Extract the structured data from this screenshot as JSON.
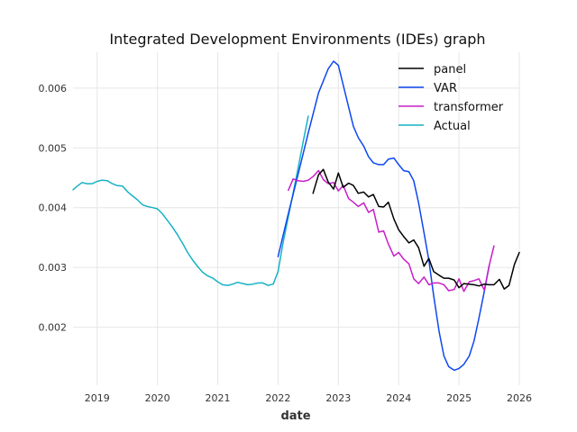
{
  "chart_data": {
    "type": "line",
    "title": "Integrated Development Environments (IDEs) graph",
    "xlabel": "date",
    "ylabel": "",
    "xlim": [
      2018.6,
      2026.0
    ],
    "ylim": [
      0.00103,
      0.0066
    ],
    "x_ticks": [
      2019,
      2020,
      2021,
      2022,
      2023,
      2024,
      2025,
      2026
    ],
    "x_tick_labels": [
      "2019",
      "2020",
      "2021",
      "2022",
      "2023",
      "2024",
      "2025",
      "2026"
    ],
    "y_ticks": [
      0.002,
      0.003,
      0.004,
      0.005,
      0.006
    ],
    "y_tick_labels": [
      "0.002",
      "0.003",
      "0.004",
      "0.005",
      "0.006"
    ],
    "grid": true,
    "legend_position": "top-right",
    "series": [
      {
        "name": "panel",
        "color": "#000000",
        "x": [
          2022.58,
          2022.67,
          2022.75,
          2022.83,
          2022.92,
          2023.0,
          2023.08,
          2023.17,
          2023.25,
          2023.33,
          2023.42,
          2023.5,
          2023.58,
          2023.67,
          2023.75,
          2023.83,
          2023.92,
          2024.0,
          2024.08,
          2024.17,
          2024.25,
          2024.33,
          2024.42,
          2024.5,
          2024.58,
          2024.67,
          2024.75,
          2024.83,
          2024.92,
          2025.0,
          2025.08,
          2025.17,
          2025.25,
          2025.33,
          2025.42,
          2025.5,
          2025.58,
          2025.67,
          2025.75,
          2025.83,
          2025.92,
          2026.0
        ],
        "values": [
          0.00424,
          0.00455,
          0.00464,
          0.00443,
          0.00431,
          0.00458,
          0.00434,
          0.00441,
          0.00437,
          0.00424,
          0.00426,
          0.00418,
          0.00422,
          0.00402,
          0.00401,
          0.00409,
          0.00381,
          0.00363,
          0.00352,
          0.00341,
          0.00346,
          0.00333,
          0.00302,
          0.00315,
          0.00293,
          0.00287,
          0.00282,
          0.00282,
          0.00279,
          0.00266,
          0.00273,
          0.00272,
          0.00271,
          0.00269,
          0.00272,
          0.00271,
          0.00271,
          0.0028,
          0.00264,
          0.0027,
          0.00305,
          0.00325
        ]
      },
      {
        "name": "VAR",
        "color": "#0d47f0",
        "x": [
          2022.0,
          2022.17,
          2022.33,
          2022.5,
          2022.67,
          2022.83,
          2022.92,
          2023.0,
          2023.08,
          2023.17,
          2023.25,
          2023.33,
          2023.42,
          2023.5,
          2023.58,
          2023.67,
          2023.75,
          2023.83,
          2023.92,
          2024.0,
          2024.08,
          2024.17,
          2024.25,
          2024.33,
          2024.42,
          2024.5,
          2024.58,
          2024.67,
          2024.75,
          2024.83,
          2024.92,
          2025.0,
          2025.08,
          2025.17,
          2025.25,
          2025.33,
          2025.42,
          2025.5
        ],
        "values": [
          0.00318,
          0.0039,
          0.00455,
          0.00525,
          0.00592,
          0.00632,
          0.00645,
          0.00638,
          0.00605,
          0.00568,
          0.00536,
          0.00517,
          0.00503,
          0.00485,
          0.00475,
          0.00472,
          0.00472,
          0.00481,
          0.00483,
          0.00472,
          0.00462,
          0.0046,
          0.00445,
          0.00408,
          0.00358,
          0.00312,
          0.00253,
          0.00193,
          0.00152,
          0.00134,
          0.00128,
          0.00131,
          0.00138,
          0.00152,
          0.00177,
          0.00215,
          0.0026,
          0.00303
        ]
      },
      {
        "name": "transformer",
        "color": "#c81ec8",
        "x": [
          2022.17,
          2022.25,
          2022.33,
          2022.42,
          2022.5,
          2022.58,
          2022.67,
          2022.75,
          2022.83,
          2022.92,
          2023.0,
          2023.08,
          2023.17,
          2023.25,
          2023.33,
          2023.42,
          2023.5,
          2023.58,
          2023.67,
          2023.75,
          2023.83,
          2023.92,
          2024.0,
          2024.08,
          2024.17,
          2024.25,
          2024.33,
          2024.42,
          2024.5,
          2024.58,
          2024.67,
          2024.75,
          2024.83,
          2024.92,
          2025.0,
          2025.08,
          2025.17,
          2025.25,
          2025.33,
          2025.42,
          2025.5,
          2025.58
        ],
        "values": [
          0.00429,
          0.00448,
          0.00445,
          0.00444,
          0.00446,
          0.00452,
          0.00462,
          0.00447,
          0.0044,
          0.00442,
          0.00428,
          0.00437,
          0.00415,
          0.00409,
          0.00402,
          0.00408,
          0.00392,
          0.00397,
          0.00359,
          0.00361,
          0.00339,
          0.00319,
          0.00325,
          0.00314,
          0.00306,
          0.00281,
          0.00273,
          0.00284,
          0.00271,
          0.00274,
          0.00274,
          0.00271,
          0.00261,
          0.00263,
          0.00281,
          0.0026,
          0.00276,
          0.00278,
          0.00281,
          0.00262,
          0.00303,
          0.00336
        ]
      },
      {
        "name": "Actual",
        "color": "#17b2c4",
        "x": [
          2018.6,
          2018.67,
          2018.75,
          2018.83,
          2018.92,
          2019.0,
          2019.08,
          2019.17,
          2019.25,
          2019.33,
          2019.42,
          2019.5,
          2019.58,
          2019.67,
          2019.75,
          2019.83,
          2019.92,
          2020.0,
          2020.08,
          2020.17,
          2020.25,
          2020.33,
          2020.42,
          2020.5,
          2020.58,
          2020.67,
          2020.75,
          2020.83,
          2020.92,
          2021.0,
          2021.08,
          2021.17,
          2021.25,
          2021.33,
          2021.42,
          2021.5,
          2021.58,
          2021.67,
          2021.75,
          2021.83,
          2021.92,
          2022.0,
          2022.08,
          2022.17,
          2022.25,
          2022.33,
          2022.42,
          2022.5
        ],
        "values": [
          0.0043,
          0.00436,
          0.00442,
          0.0044,
          0.0044,
          0.00444,
          0.00446,
          0.00445,
          0.0044,
          0.00437,
          0.00436,
          0.00427,
          0.0042,
          0.00413,
          0.00405,
          0.00402,
          0.004,
          0.00398,
          0.0039,
          0.00378,
          0.00367,
          0.00355,
          0.0034,
          0.00325,
          0.00313,
          0.00301,
          0.00292,
          0.00286,
          0.00282,
          0.00276,
          0.00271,
          0.0027,
          0.00272,
          0.00275,
          0.00273,
          0.00271,
          0.00272,
          0.00274,
          0.00274,
          0.0027,
          0.00272,
          0.00293,
          0.0034,
          0.00385,
          0.00425,
          0.00465,
          0.00512,
          0.00553
        ]
      }
    ]
  }
}
